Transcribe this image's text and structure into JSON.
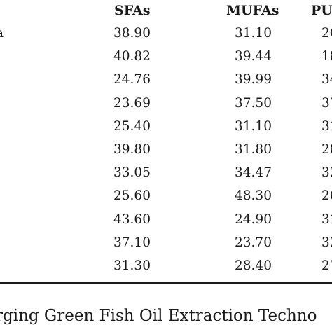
{
  "table": {
    "headers": {
      "sfas": "SFAs",
      "mufas": "MUFAs",
      "pufas": "PU"
    },
    "rows": [
      {
        "label": "a",
        "sfas": "38.90",
        "mufas": "31.10",
        "pufas": "2C"
      },
      {
        "label": "",
        "sfas": "40.82",
        "mufas": "39.44",
        "pufas": "18"
      },
      {
        "label": "",
        "sfas": "24.76",
        "mufas": "39.99",
        "pufas": "34"
      },
      {
        "label": "",
        "sfas": "23.69",
        "mufas": "37.50",
        "pufas": "37"
      },
      {
        "label": "",
        "sfas": "25.40",
        "mufas": "31.10",
        "pufas": "31"
      },
      {
        "label": "",
        "sfas": "39.80",
        "mufas": "31.80",
        "pufas": "28"
      },
      {
        "label": "",
        "sfas": "33.05",
        "mufas": "34.47",
        "pufas": "32"
      },
      {
        "label": "",
        "sfas": "25.60",
        "mufas": "48.30",
        "pufas": "26"
      },
      {
        "label": "",
        "sfas": "43.60",
        "mufas": "24.90",
        "pufas": "31"
      },
      {
        "label": "",
        "sfas": "37.10",
        "mufas": "23.70",
        "pufas": "32"
      },
      {
        "label": "",
        "sfas": "31.30",
        "mufas": "28.40",
        "pufas": "27"
      }
    ]
  },
  "caption": "rging Green Fish Oil Extraction Techno"
}
